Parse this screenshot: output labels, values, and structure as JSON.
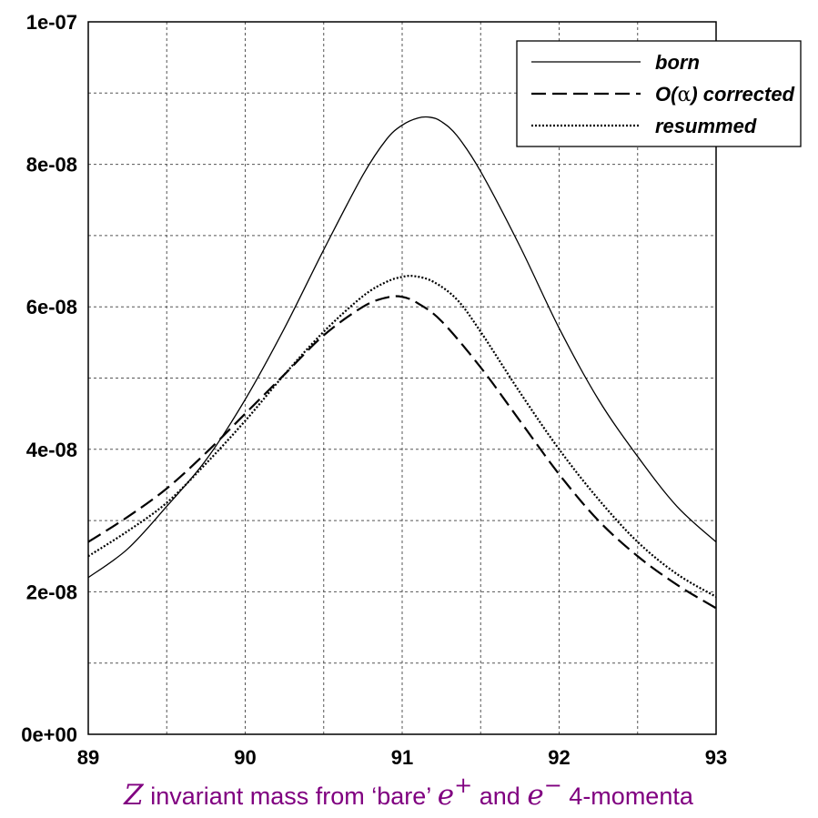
{
  "chart_data": {
    "type": "line",
    "title": "",
    "xlabel": {
      "parts": [
        {
          "text": "Z",
          "math": true
        },
        {
          "text": " invariant mass from ‘bare’ ",
          "math": false
        },
        {
          "text": "e",
          "math": true,
          "sup": "+"
        },
        {
          "text": " and ",
          "math": false
        },
        {
          "text": "e",
          "math": true,
          "sup": "−"
        },
        {
          "text": " 4-momenta",
          "math": false
        }
      ]
    },
    "ylabel": "",
    "xlim": [
      89,
      93
    ],
    "ylim": [
      0,
      1e-07
    ],
    "x_ticks": [
      89,
      90,
      91,
      92,
      93
    ],
    "x_tick_labels": [
      "89",
      "90",
      "91",
      "92",
      "93"
    ],
    "y_ticks": [
      0,
      2e-08,
      4e-08,
      6e-08,
      8e-08,
      1e-07
    ],
    "y_tick_labels": [
      "0e+00",
      "2e-08",
      "4e-08",
      "6e-08",
      "8e-08",
      "1e-07"
    ],
    "grid": true,
    "grid_style": "dotted",
    "legend_position": "top-right",
    "colors": {
      "line": "#000000",
      "grid": "#555555",
      "xlabel": "#800080"
    },
    "series": [
      {
        "name": "born",
        "style": "solid",
        "x": [
          89.0,
          89.25,
          89.5,
          89.75,
          90.0,
          90.25,
          90.5,
          90.75,
          90.9,
          91.0,
          91.1,
          91.18,
          91.25,
          91.35,
          91.5,
          91.75,
          92.0,
          92.25,
          92.5,
          92.75,
          93.0
        ],
        "y": [
          2.2e-08,
          2.6e-08,
          3.2e-08,
          3.85e-08,
          4.7e-08,
          5.7e-08,
          6.8e-08,
          7.85e-08,
          8.35e-08,
          8.55e-08,
          8.65e-08,
          8.66e-08,
          8.6e-08,
          8.4e-08,
          7.9e-08,
          6.85e-08,
          5.7e-08,
          4.7e-08,
          3.9e-08,
          3.2e-08,
          2.7e-08
        ]
      },
      {
        "name": "O(α) corrected",
        "legend_parts": [
          {
            "text": "O(",
            "symbol": false
          },
          {
            "text": "α",
            "symbol": true
          },
          {
            "text": ") corrected",
            "symbol": false
          }
        ],
        "style": "dashed",
        "x": [
          89.0,
          89.25,
          89.5,
          89.75,
          90.0,
          90.25,
          90.5,
          90.75,
          90.9,
          91.0,
          91.1,
          91.25,
          91.5,
          91.75,
          92.0,
          92.25,
          92.5,
          92.75,
          93.0
        ],
        "y": [
          2.7e-08,
          3.05e-08,
          3.45e-08,
          3.95e-08,
          4.5e-08,
          5.05e-08,
          5.6e-08,
          6e-08,
          6.13e-08,
          6.14e-08,
          6.05e-08,
          5.8e-08,
          5.15e-08,
          4.4e-08,
          3.65e-08,
          3e-08,
          2.5e-08,
          2.1e-08,
          1.77e-08
        ]
      },
      {
        "name": "resummed",
        "style": "dotted",
        "x": [
          89.0,
          89.25,
          89.5,
          89.75,
          90.0,
          90.25,
          90.5,
          90.75,
          90.9,
          91.0,
          91.08,
          91.2,
          91.35,
          91.5,
          91.75,
          92.0,
          92.25,
          92.5,
          92.75,
          93.0
        ],
        "y": [
          2.5e-08,
          2.85e-08,
          3.25e-08,
          3.8e-08,
          4.4e-08,
          5.05e-08,
          5.65e-08,
          6.15e-08,
          6.35e-08,
          6.42e-08,
          6.43e-08,
          6.35e-08,
          6.1e-08,
          5.65e-08,
          4.8e-08,
          4e-08,
          3.3e-08,
          2.7e-08,
          2.25e-08,
          1.93e-08
        ]
      }
    ]
  }
}
